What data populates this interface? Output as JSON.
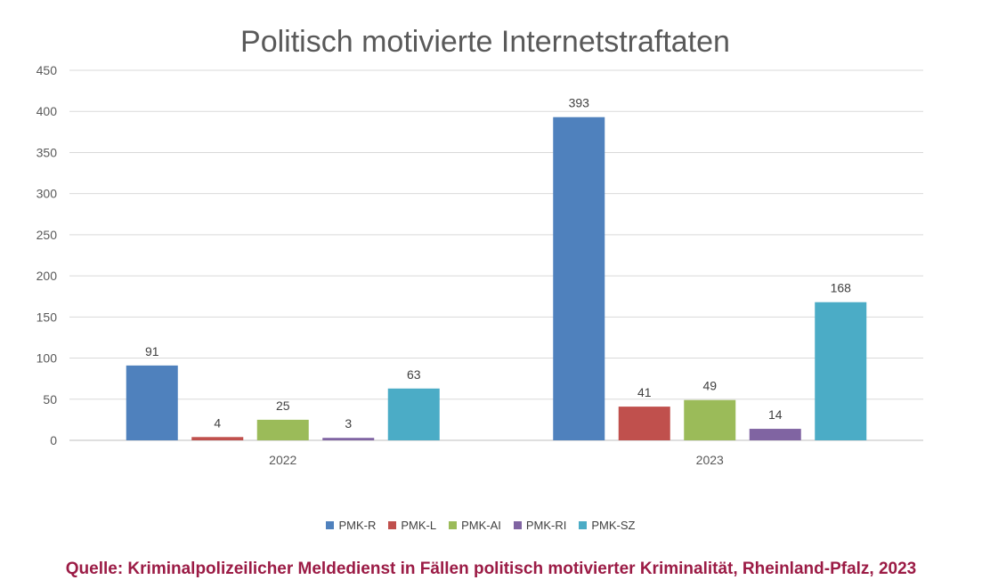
{
  "chart_data": {
    "type": "bar",
    "title": "Politisch motivierte Internetstraftaten",
    "categories": [
      "2022",
      "2023"
    ],
    "series": [
      {
        "name": "PMK-R",
        "values": [
          91,
          393
        ],
        "color": "#4f81bd"
      },
      {
        "name": "PMK-L",
        "values": [
          4,
          41
        ],
        "color": "#c0504d"
      },
      {
        "name": "PMK-AI",
        "values": [
          25,
          49
        ],
        "color": "#9bbb59"
      },
      {
        "name": "PMK-RI",
        "values": [
          3,
          14
        ],
        "color": "#8064a2"
      },
      {
        "name": "PMK-SZ",
        "values": [
          63,
          168
        ],
        "color": "#4bacc6"
      }
    ],
    "ylim": [
      0,
      450
    ],
    "yticks": [
      0,
      50,
      100,
      150,
      200,
      250,
      300,
      350,
      400,
      450
    ],
    "grid": true,
    "legend_position": "bottom",
    "data_labels": true
  },
  "source": "Quelle: Kriminalpolizeilicher Meldedienst in Fällen politisch motivierter Kriminalität, Rheinland-Pfalz, 2023"
}
